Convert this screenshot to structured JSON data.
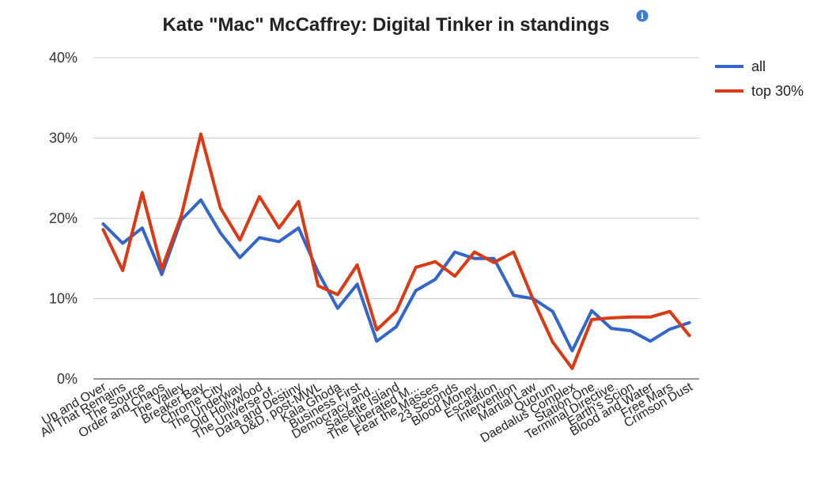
{
  "chart_data": {
    "type": "line",
    "title": "Kate \"Mac\" McCaffrey: Digital Tinker in standings",
    "title_icon": "info-icon",
    "xlabel": "",
    "ylabel": "",
    "ylim": [
      0,
      40
    ],
    "y_ticks": [
      "0%",
      "10%",
      "20%",
      "30%",
      "40%"
    ],
    "grid": true,
    "legend_position": "right",
    "categories": [
      "Up and Over",
      "All That Remains",
      "The Source",
      "Order and Chaos",
      "The Valley",
      "Breaker Bay",
      "Chrome City",
      "The Underway",
      "Old Hollywood",
      "The Universe of...",
      "Data and Destiny",
      "D&D, post-MWL",
      "Kala Ghoda",
      "Business First",
      "Democracy and...",
      "Salsette Island",
      "The Liberated M...",
      "Fear the Masses",
      "23 Seconds",
      "Blood Money",
      "Escalation",
      "Intervention",
      "Martial Law",
      "Quorum",
      "Daedalus Complex",
      "Station One",
      "Terminal Directive",
      "Earth's Scion",
      "Blood and Water",
      "Free Mars",
      "Crimson Dust"
    ],
    "series": [
      {
        "name": "all",
        "color": "#3366cc",
        "values": [
          19.3,
          16.9,
          18.8,
          13.0,
          19.8,
          22.3,
          18.2,
          15.1,
          17.6,
          17.1,
          18.8,
          13.3,
          8.8,
          11.8,
          4.7,
          6.5,
          11.0,
          12.4,
          15.8,
          15.0,
          15.0,
          10.4,
          10.0,
          8.4,
          3.5,
          8.5,
          6.3,
          6.0,
          4.7,
          6.2,
          7.0
        ]
      },
      {
        "name": "top 30%",
        "color": "#dc3912",
        "values": [
          18.6,
          13.5,
          23.2,
          13.7,
          20.3,
          30.5,
          21.3,
          17.3,
          22.7,
          18.8,
          22.1,
          11.6,
          10.5,
          14.2,
          6.1,
          8.4,
          13.9,
          14.6,
          12.8,
          15.8,
          14.5,
          15.8,
          9.9,
          4.6,
          1.3,
          7.4,
          7.6,
          7.7,
          7.7,
          8.4,
          5.4
        ]
      }
    ]
  }
}
